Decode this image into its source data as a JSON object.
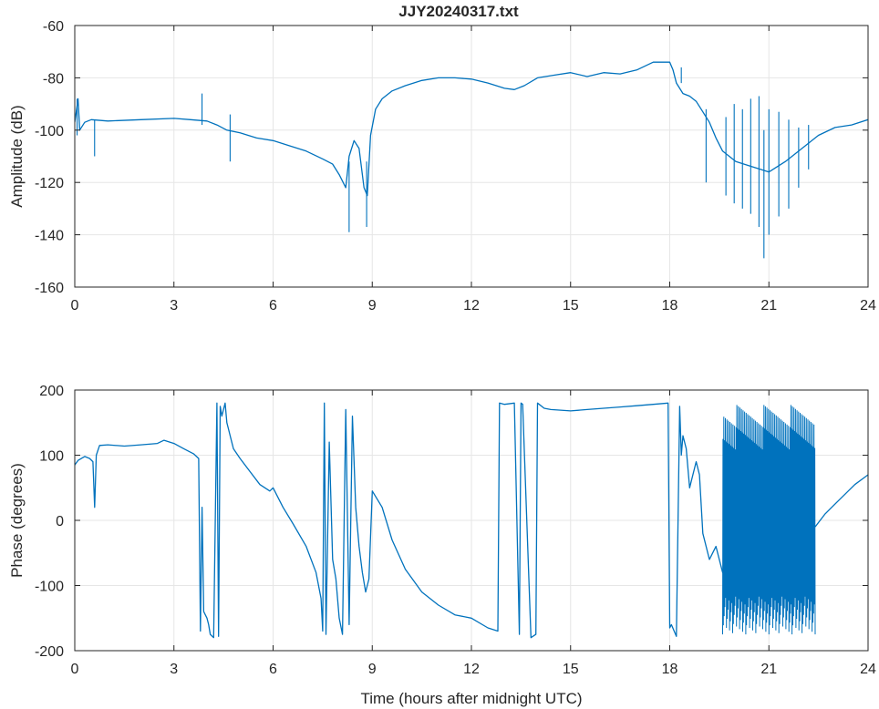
{
  "title": "JJY20240317.txt",
  "colors": {
    "series": "#0072BD",
    "grid": "#e6e6e6",
    "axis": "#262626"
  },
  "chart_data": [
    {
      "type": "line",
      "title": "JJY20240317.txt",
      "xlabel": "",
      "ylabel": "Amplitude (dB)",
      "xlim": [
        0,
        24
      ],
      "ylim": [
        -160,
        -60
      ],
      "xticks": [
        0,
        3,
        6,
        9,
        12,
        15,
        18,
        21,
        24
      ],
      "yticks": [
        -60,
        -80,
        -100,
        -120,
        -140,
        -160
      ],
      "grid": true,
      "series": [
        {
          "x": [
            0,
            0.1,
            0.15,
            0.3,
            0.5,
            1,
            2,
            3,
            3.5,
            4,
            4.3,
            4.6,
            5,
            5.5,
            6,
            6.5,
            7,
            7.5,
            7.8,
            8.0,
            8.2,
            8.3,
            8.45,
            8.6,
            8.75,
            8.85,
            8.95,
            9.1,
            9.3,
            9.6,
            10,
            10.5,
            11,
            11.5,
            12,
            12.5,
            13,
            13.3,
            13.6,
            14,
            14.5,
            15,
            15.5,
            16,
            16.5,
            17,
            17.5,
            18,
            18.1,
            18.2,
            18.4,
            18.6,
            18.8,
            19,
            19.2,
            19.4,
            19.6,
            20,
            20.5,
            21,
            21.5,
            22,
            22.5,
            23,
            23.5,
            24
          ],
          "y": [
            -97,
            -88,
            -100,
            -97,
            -96,
            -96.5,
            -96,
            -95.5,
            -96,
            -96.5,
            -98,
            -100,
            -101,
            -103,
            -104,
            -106,
            -108,
            -111,
            -113,
            -117,
            -122,
            -110,
            -104,
            -107,
            -122,
            -125,
            -102,
            -92,
            -88,
            -85,
            -83,
            -81,
            -80,
            -80,
            -80.5,
            -82,
            -84,
            -84.5,
            -83,
            -80,
            -79,
            -78,
            -79.5,
            -78,
            -78.5,
            -77,
            -74,
            -74,
            -77,
            -82,
            -86,
            -87,
            -89,
            -93,
            -97,
            -103,
            -108,
            -112,
            -114,
            -116,
            -112,
            -107,
            -102,
            -99,
            -98,
            -96
          ]
        }
      ],
      "spikes": [
        {
          "x": [
            0.07,
            0.07
          ],
          "y": [
            -102,
            -88
          ]
        },
        {
          "x": [
            0.6,
            0.6
          ],
          "y": [
            -110,
            -96
          ]
        },
        {
          "x": [
            3.85,
            3.85
          ],
          "y": [
            -98,
            -86
          ]
        },
        {
          "x": [
            4.7,
            4.7
          ],
          "y": [
            -112,
            -94
          ]
        },
        {
          "x": [
            8.3,
            8.3
          ],
          "y": [
            -139,
            -112
          ]
        },
        {
          "x": [
            8.83,
            8.83
          ],
          "y": [
            -137,
            -112
          ]
        },
        {
          "x": [
            18.35,
            18.35
          ],
          "y": [
            -82,
            -76
          ]
        },
        {
          "x": [
            19.1,
            19.1
          ],
          "y": [
            -120,
            -92
          ]
        },
        {
          "x": [
            19.7,
            19.7
          ],
          "y": [
            -125,
            -95
          ]
        },
        {
          "x": [
            19.95,
            19.95
          ],
          "y": [
            -128,
            -90
          ]
        },
        {
          "x": [
            20.2,
            20.2
          ],
          "y": [
            -130,
            -92
          ]
        },
        {
          "x": [
            20.45,
            20.45
          ],
          "y": [
            -132,
            -88
          ]
        },
        {
          "x": [
            20.7,
            20.7
          ],
          "y": [
            -137,
            -87
          ]
        },
        {
          "x": [
            20.85,
            20.85
          ],
          "y": [
            -149,
            -100
          ]
        },
        {
          "x": [
            21.0,
            21.0
          ],
          "y": [
            -140,
            -92
          ]
        },
        {
          "x": [
            21.3,
            21.3
          ],
          "y": [
            -133,
            -93
          ]
        },
        {
          "x": [
            21.6,
            21.6
          ],
          "y": [
            -130,
            -96
          ]
        },
        {
          "x": [
            21.9,
            21.9
          ],
          "y": [
            -122,
            -99
          ]
        },
        {
          "x": [
            22.2,
            22.2
          ],
          "y": [
            -115,
            -98
          ]
        }
      ]
    },
    {
      "type": "line",
      "title": "",
      "xlabel": "Time (hours after midnight UTC)",
      "ylabel": "Phase (degrees)",
      "xlim": [
        0,
        24
      ],
      "ylim": [
        -200,
        200
      ],
      "xticks": [
        0,
        3,
        6,
        9,
        12,
        15,
        18,
        21,
        24
      ],
      "yticks": [
        200,
        100,
        0,
        -100,
        -200
      ],
      "grid": true,
      "series": [
        {
          "x": [
            0,
            0.1,
            0.3,
            0.45,
            0.55,
            0.6,
            0.65,
            0.75,
            1,
            1.5,
            2,
            2.5,
            2.7,
            3,
            3.3,
            3.6,
            3.75,
            3.8,
            3.85,
            3.9,
            4.0,
            4.05,
            4.1,
            4.2,
            4.3,
            4.35,
            4.4,
            4.45,
            4.5,
            4.55,
            4.6,
            4.65,
            4.7,
            4.8,
            5.0,
            5.3,
            5.6,
            5.9,
            6.0,
            6.3,
            6.6,
            7.0,
            7.3,
            7.45,
            7.5,
            7.55,
            7.6,
            7.7,
            7.8,
            7.9,
            8.0,
            8.1,
            8.2,
            8.3,
            8.4,
            8.5,
            8.6,
            8.7,
            8.8,
            8.9,
            9.0,
            9.3,
            9.6,
            10,
            10.5,
            11,
            11.5,
            12,
            12.5,
            12.8,
            12.85,
            13.0,
            13.3,
            13.45,
            13.5,
            13.55,
            13.8,
            13.95,
            14.0,
            14.05,
            14.2,
            14.4,
            15,
            15.5,
            16,
            16.5,
            17,
            17.5,
            17.95,
            18.0,
            18.05,
            18.2,
            18.3,
            18.35,
            18.4,
            18.5,
            18.6,
            18.8,
            18.9,
            19.0,
            19.2,
            19.4,
            19.6,
            19.8
          ],
          "y": [
            85,
            92,
            98,
            95,
            90,
            20,
            100,
            115,
            116,
            114,
            116,
            118,
            123,
            118,
            110,
            102,
            95,
            -170,
            20,
            -140,
            -150,
            -160,
            -175,
            -180,
            180,
            -178,
            175,
            160,
            170,
            180,
            150,
            140,
            130,
            110,
            95,
            75,
            55,
            45,
            50,
            20,
            -5,
            -40,
            -80,
            -120,
            -170,
            180,
            -175,
            120,
            -60,
            -90,
            -150,
            -175,
            170,
            -160,
            160,
            20,
            -40,
            -80,
            -110,
            -90,
            45,
            20,
            -30,
            -75,
            -110,
            -130,
            -145,
            -150,
            -165,
            -170,
            180,
            178,
            180,
            -175,
            180,
            178,
            -180,
            -175,
            180,
            178,
            172,
            170,
            168,
            170,
            172,
            174,
            176,
            178,
            180,
            -165,
            -160,
            -178,
            175,
            100,
            130,
            110,
            50,
            90,
            70,
            -20,
            -60,
            -40,
            -80,
            -10
          ]
        },
        {
          "x": [
            22.4,
            22.7,
            23,
            23.3,
            23.6,
            24
          ],
          "y": [
            -10,
            10,
            25,
            40,
            55,
            70
          ]
        }
      ],
      "band": {
        "x": [
          19.6,
          22.4
        ],
        "y": [
          -175,
          178
        ],
        "density": 240
      }
    }
  ]
}
